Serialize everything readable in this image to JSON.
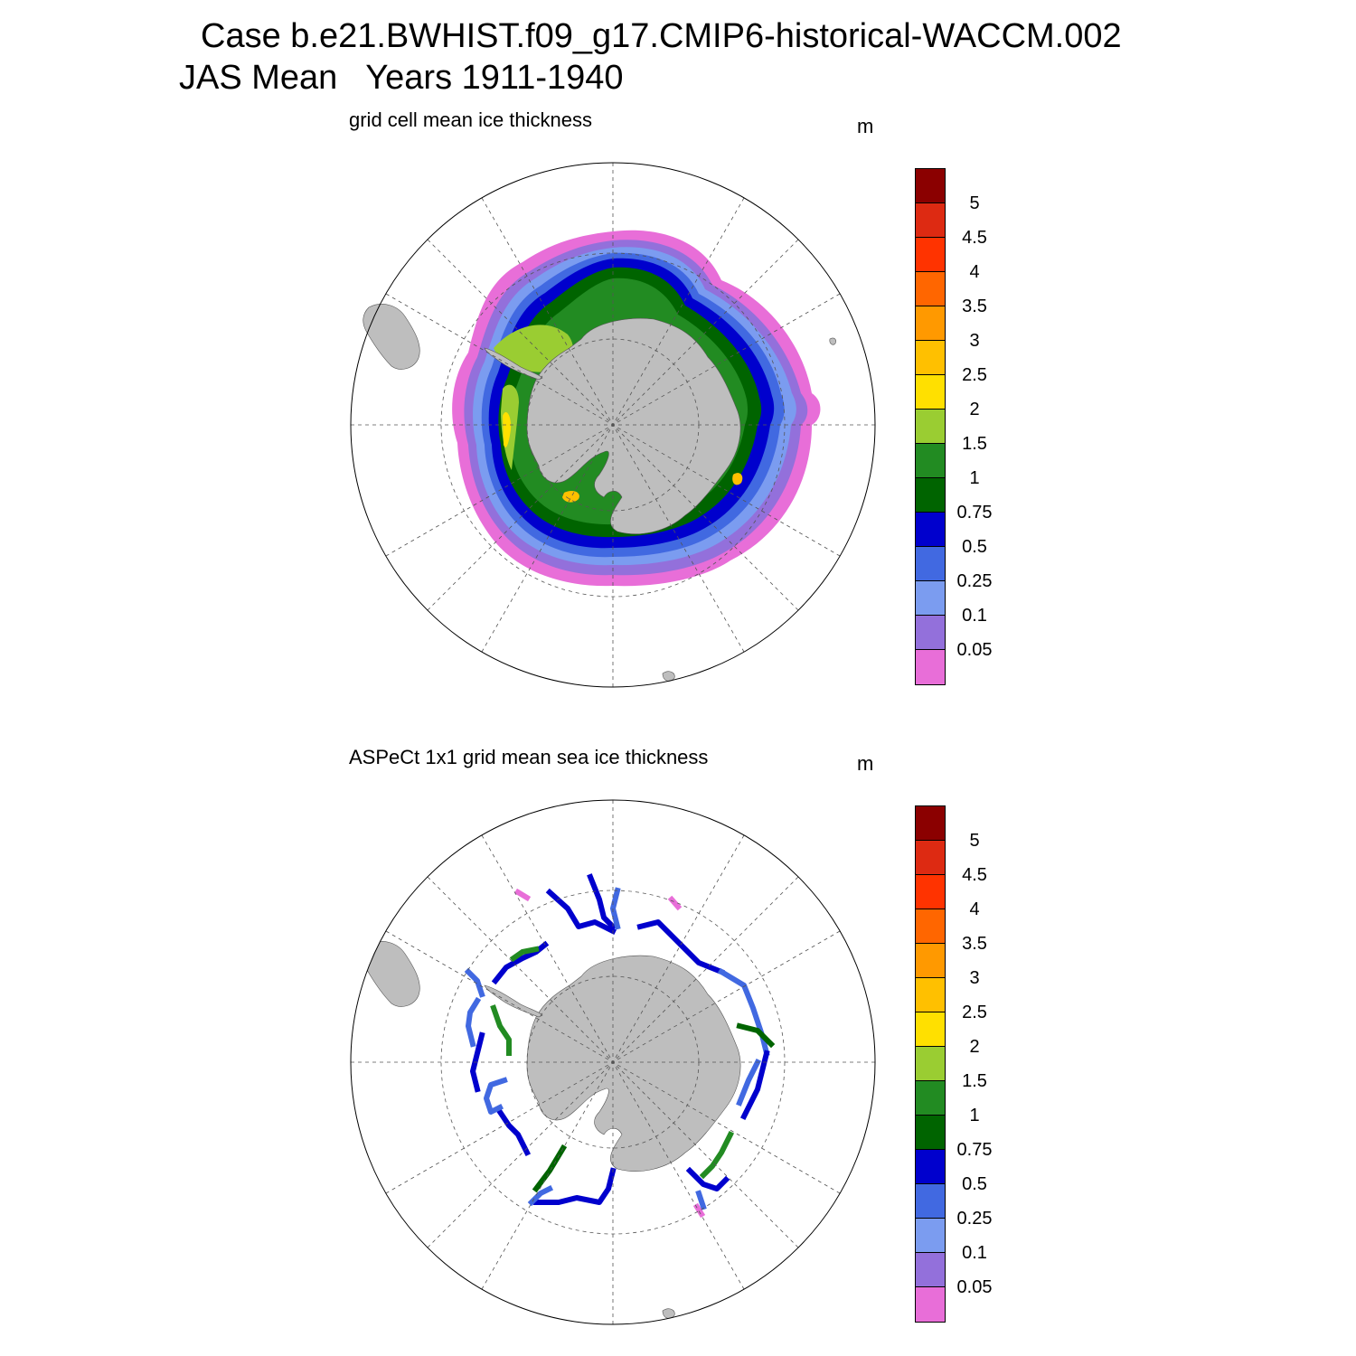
{
  "header": {
    "case_line": "Case b.e21.BWHIST.f09_g17.CMIP6-historical-WACCM.002",
    "period_line": "JAS Mean   Years 1911-1940"
  },
  "colors": {
    "levels": [
      "#e86ed8",
      "#9370db",
      "#7b9cf0",
      "#4169e1",
      "#0000cd",
      "#006400",
      "#228b22",
      "#9acd32",
      "#ffe000",
      "#ffc000",
      "#ff9900",
      "#ff6600",
      "#ff3300",
      "#dd2a12",
      "#8b0000"
    ],
    "land": "#bebebe",
    "ocean": "#ffffff"
  },
  "panels": [
    {
      "title": "grid cell mean ice thickness",
      "units": "m",
      "colorbar_labels": [
        "5",
        "4.5",
        "4",
        "3.5",
        "3",
        "2.5",
        "2",
        "1.5",
        "1",
        "0.75",
        "0.5",
        "0.25",
        "0.1",
        "0.05"
      ]
    },
    {
      "title": "ASPeCt 1x1 grid mean sea ice thickness",
      "units": "m",
      "colorbar_labels": [
        "5",
        "4.5",
        "4",
        "3.5",
        "3",
        "2.5",
        "2",
        "1.5",
        "1",
        "0.75",
        "0.5",
        "0.25",
        "0.1",
        "0.05"
      ]
    }
  ],
  "map_data": {
    "projection": "south-polar-stereographic",
    "levels": [
      0.05,
      0.1,
      0.25,
      0.5,
      0.75,
      1,
      1.5,
      2,
      2.5,
      3,
      3.5,
      4,
      4.5,
      5
    ]
  }
}
